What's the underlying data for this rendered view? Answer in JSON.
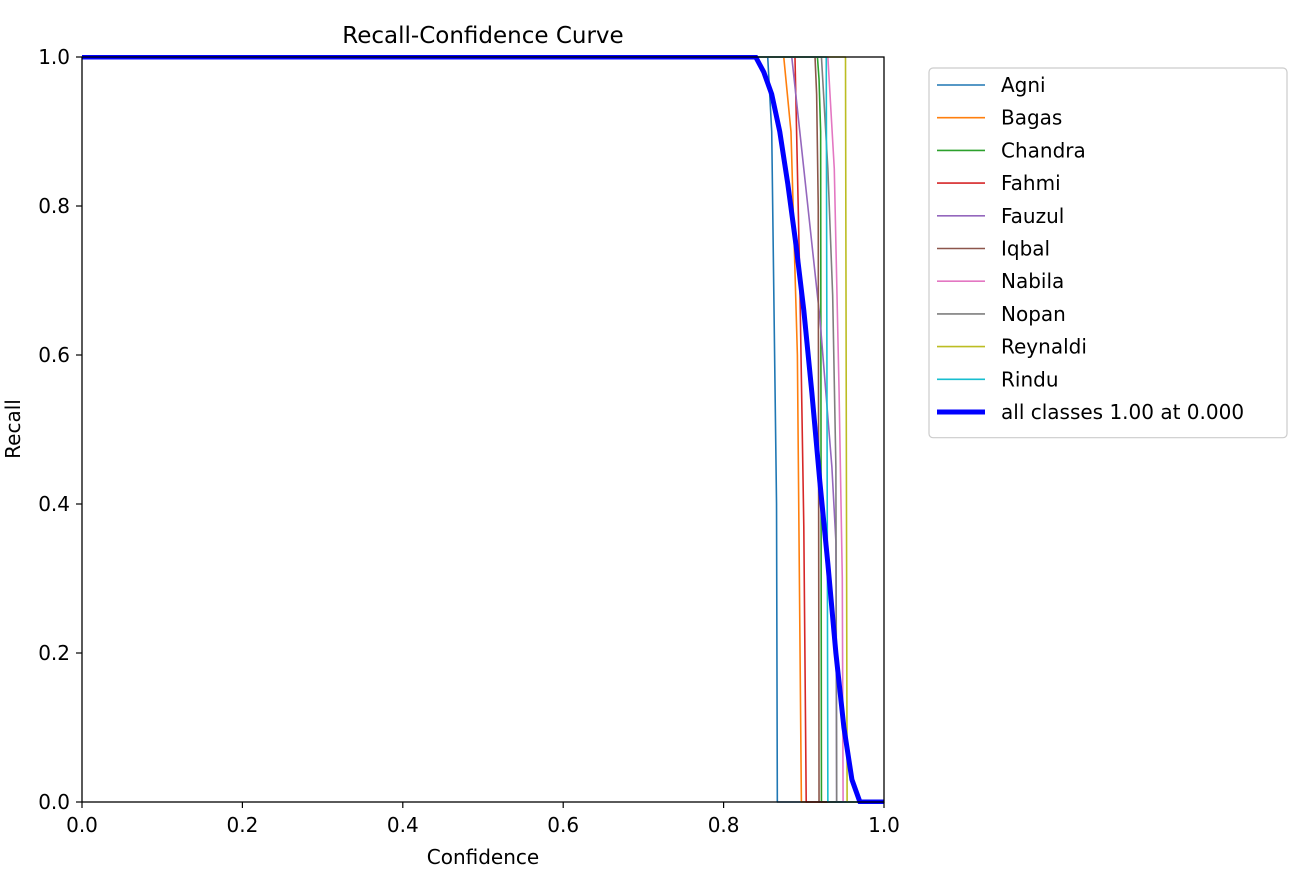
{
  "chart_data": {
    "type": "line",
    "title": "Recall-Confidence Curve",
    "xlabel": "Confidence",
    "ylabel": "Recall",
    "xlim": [
      0.0,
      1.0
    ],
    "ylim": [
      0.0,
      1.0
    ],
    "xticks": [
      "0.0",
      "0.2",
      "0.4",
      "0.6",
      "0.8",
      "1.0"
    ],
    "yticks": [
      "0.0",
      "0.2",
      "0.4",
      "0.6",
      "0.8",
      "1.0"
    ],
    "grid": false,
    "legend_position": "outside-right-top",
    "series": [
      {
        "name": "Agni",
        "color": "#1f77b4",
        "x": [
          0.0,
          0.855,
          0.86,
          0.866,
          0.867,
          0.868,
          1.0
        ],
        "y": [
          1.0,
          1.0,
          0.9,
          0.4,
          0.0,
          0.0,
          0.0
        ]
      },
      {
        "name": "Bagas",
        "color": "#ff7f0e",
        "x": [
          0.0,
          0.875,
          0.884,
          0.892,
          0.897,
          0.898,
          1.0
        ],
        "y": [
          1.0,
          1.0,
          0.9,
          0.6,
          0.0,
          0.0,
          0.0
        ]
      },
      {
        "name": "Chandra",
        "color": "#2ca02c",
        "x": [
          0.0,
          0.917,
          0.919,
          0.921,
          0.922,
          0.923,
          1.0
        ],
        "y": [
          1.0,
          1.0,
          0.97,
          0.9,
          0.0,
          0.0,
          0.0
        ]
      },
      {
        "name": "Fahmi",
        "color": "#d62728",
        "x": [
          0.0,
          0.889,
          0.895,
          0.9,
          0.903,
          0.904,
          1.0
        ],
        "y": [
          1.0,
          1.0,
          0.7,
          0.37,
          0.0,
          0.0,
          0.0
        ]
      },
      {
        "name": "Fauzul",
        "color": "#9467bd",
        "x": [
          0.0,
          0.885,
          0.9,
          0.92,
          0.935,
          0.94,
          0.941,
          1.0
        ],
        "y": [
          1.0,
          1.0,
          0.85,
          0.65,
          0.45,
          0.35,
          0.0,
          0.0
        ]
      },
      {
        "name": "Iqbal",
        "color": "#8c564b",
        "x": [
          0.0,
          0.914,
          0.916,
          0.918,
          0.919,
          1.0
        ],
        "y": [
          1.0,
          1.0,
          0.95,
          0.8,
          0.0,
          0.0
        ]
      },
      {
        "name": "Nabila",
        "color": "#e377c2",
        "x": [
          0.0,
          0.93,
          0.938,
          0.944,
          0.948,
          0.949,
          1.0
        ],
        "y": [
          1.0,
          1.0,
          0.85,
          0.55,
          0.3,
          0.0,
          0.0
        ]
      },
      {
        "name": "Nopan",
        "color": "#7f7f7f",
        "x": [
          0.0,
          0.922,
          0.93,
          0.936,
          0.94,
          0.941,
          1.0
        ],
        "y": [
          1.0,
          1.0,
          0.85,
          0.68,
          0.45,
          0.0,
          0.0
        ]
      },
      {
        "name": "Reynaldi",
        "color": "#bcbd22",
        "x": [
          0.0,
          0.952,
          0.953,
          0.954,
          1.0
        ],
        "y": [
          1.0,
          1.0,
          0.5,
          0.0,
          0.0
        ]
      },
      {
        "name": "Rindu",
        "color": "#17becf",
        "x": [
          0.0,
          0.928,
          0.929,
          0.93,
          1.0
        ],
        "y": [
          1.0,
          1.0,
          0.5,
          0.0,
          0.0
        ]
      },
      {
        "name": "all classes 1.00 at 0.000",
        "color": "#0000ff",
        "x": [
          0.0,
          0.835,
          0.84,
          0.85,
          0.86,
          0.87,
          0.88,
          0.89,
          0.9,
          0.91,
          0.92,
          0.93,
          0.94,
          0.95,
          0.96,
          0.97,
          0.98,
          1.0
        ],
        "y": [
          1.0,
          1.0,
          1.0,
          0.98,
          0.95,
          0.9,
          0.83,
          0.75,
          0.66,
          0.55,
          0.43,
          0.32,
          0.2,
          0.1,
          0.03,
          0.0,
          0.0,
          0.0
        ]
      }
    ]
  }
}
